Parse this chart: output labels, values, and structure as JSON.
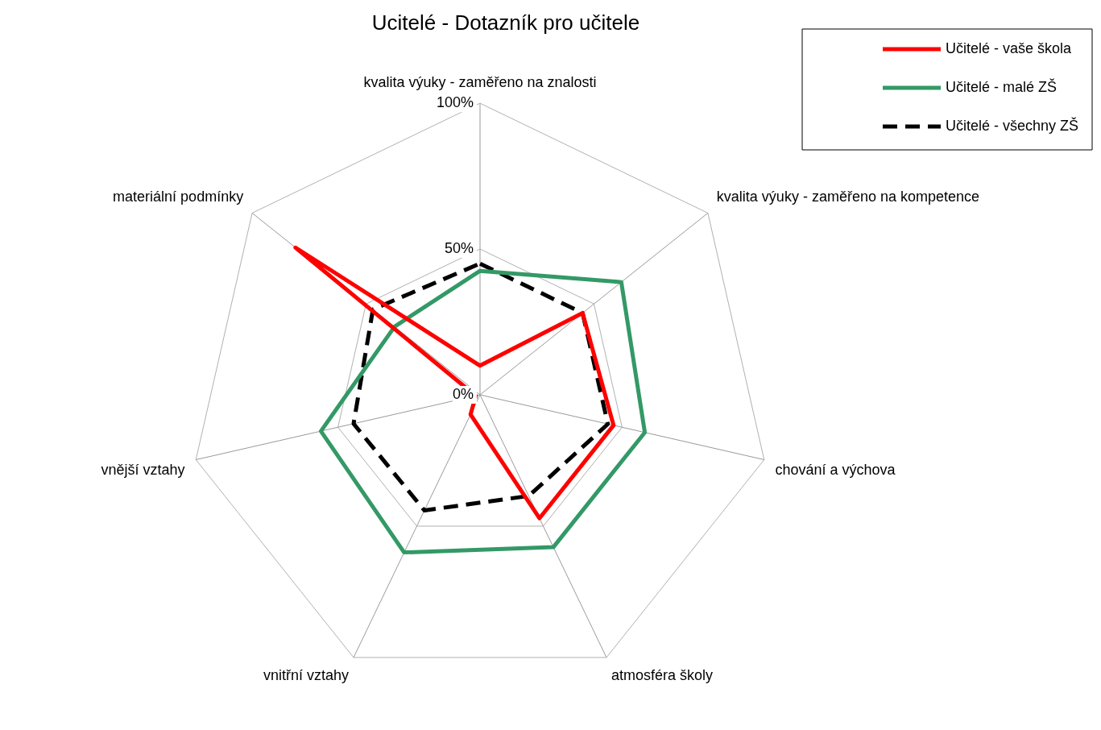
{
  "chart_data": {
    "type": "radar",
    "title": "Ucitelé - Dotazník pro učitele",
    "categories": [
      "kvalita výuky - zaměřeno na znalosti",
      "kvalita výuky - zaměřeno na kompetence",
      "chování a výchova",
      "atmosféra školy",
      "vnitřní vztahy",
      "vnější vztahy",
      "materiální podmínky"
    ],
    "series": [
      {
        "name": "Učitelé - vaše škola",
        "color": "#ff0000",
        "line_style": "solid",
        "values": [
          10,
          45,
          47,
          47,
          7.5,
          1.5,
          81
        ]
      },
      {
        "name": "Učitelé - malé ZŠ",
        "color": "#339966",
        "line_style": "solid",
        "values": [
          42.5,
          62,
          58,
          58,
          60,
          56,
          37.5
        ]
      },
      {
        "name": "Učitelé - všechny ZŠ",
        "color": "#000000",
        "line_style": "dashed",
        "values": [
          45,
          45,
          45,
          38.5,
          44,
          44.5,
          47
        ]
      }
    ],
    "ylim": [
      0,
      100
    ],
    "yticks": [
      {
        "value": 0,
        "label": "0%"
      },
      {
        "value": 50,
        "label": "50%"
      },
      {
        "value": 100,
        "label": "100%"
      }
    ],
    "grid": true,
    "legend": "top right",
    "marker": "none"
  }
}
